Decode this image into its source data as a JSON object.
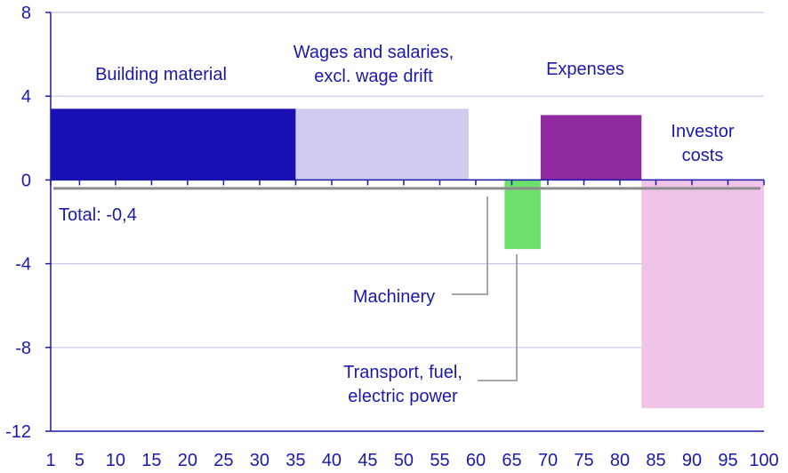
{
  "chart_data": {
    "type": "bar",
    "subtype": "variable-width (marimekko)",
    "xlim": [
      1,
      100
    ],
    "ylim": [
      -12,
      8
    ],
    "x_ticks": [
      "1",
      "5",
      "10",
      "15",
      "20",
      "25",
      "30",
      "35",
      "40",
      "45",
      "50",
      "55",
      "60",
      "65",
      "70",
      "75",
      "80",
      "85",
      "90",
      "95",
      "100"
    ],
    "y_ticks": [
      "8",
      "4",
      "0",
      "-4",
      "-8",
      "-12"
    ],
    "grid": "horizontal",
    "series": [
      {
        "name": "Building material",
        "x_start": 1,
        "x_end": 35,
        "value": 3.4,
        "color": "#1a0fb4",
        "label_lines": [
          "Building material"
        ]
      },
      {
        "name": "Wages and salaries, excl. wage drift",
        "x_start": 35,
        "x_end": 59,
        "value": 3.4,
        "color": "#d0ccf0",
        "label_lines": [
          "Wages and salaries,",
          "excl. wage drift"
        ]
      },
      {
        "name": "Machinery",
        "x_start": 59,
        "x_end": 64,
        "value": 0.0,
        "color": "#7e7e7e",
        "label_lines": [
          "Machinery"
        ]
      },
      {
        "name": "Transport, fuel, electric power",
        "x_start": 64,
        "x_end": 69,
        "value": -3.3,
        "color": "#6ee06e",
        "label_lines": [
          "Transport, fuel,",
          "electric power"
        ]
      },
      {
        "name": "Expenses",
        "x_start": 69,
        "x_end": 83,
        "value": 3.1,
        "color": "#8e2a9e",
        "label_lines": [
          "Expenses"
        ]
      },
      {
        "name": "Investor costs",
        "x_start": 83,
        "x_end": 100,
        "value": -10.9,
        "color": "#f0c4e8",
        "label_lines": [
          "Investor",
          "costs"
        ]
      }
    ],
    "total": {
      "label": "Total: -0,4",
      "value": -0.4,
      "color": "#8c8c8c"
    },
    "colors": {
      "axis": "#1a1aa8",
      "grid": "#c8c8e8",
      "text": "#1a1aa8",
      "leader": "#8c8c8c"
    }
  }
}
